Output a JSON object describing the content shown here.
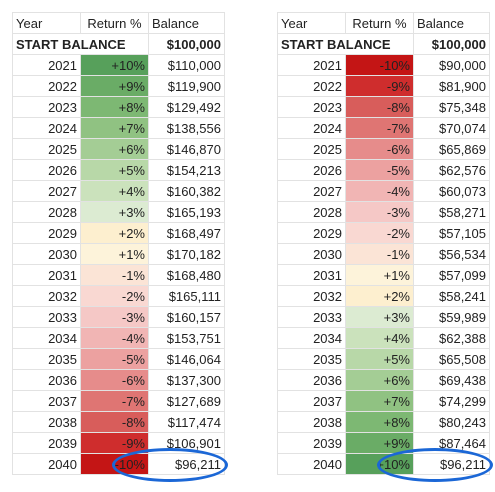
{
  "headers": {
    "year": "Year",
    "ret": "Return %",
    "bal": "Balance"
  },
  "start": {
    "label": "START BALANCE",
    "balance": "$100,000"
  },
  "left": {
    "rows": [
      {
        "year": "2021",
        "ret": "+10%",
        "bal": "$110,000",
        "color": "#57a05b"
      },
      {
        "year": "2022",
        "ret": "+9%",
        "bal": "$119,900",
        "color": "#6aac66"
      },
      {
        "year": "2023",
        "ret": "+8%",
        "bal": "$129,492",
        "color": "#7db873"
      },
      {
        "year": "2024",
        "ret": "+7%",
        "bal": "$138,556",
        "color": "#90c282"
      },
      {
        "year": "2025",
        "ret": "+6%",
        "bal": "$146,870",
        "color": "#a4cd95"
      },
      {
        "year": "2026",
        "ret": "+5%",
        "bal": "$154,213",
        "color": "#b8d8a8"
      },
      {
        "year": "2027",
        "ret": "+4%",
        "bal": "$160,382",
        "color": "#cbe2bc"
      },
      {
        "year": "2028",
        "ret": "+3%",
        "bal": "$165,193",
        "color": "#dcebd2"
      },
      {
        "year": "2029",
        "ret": "+2%",
        "bal": "$168,497",
        "color": "#fdefcf"
      },
      {
        "year": "2030",
        "ret": "+1%",
        "bal": "$170,182",
        "color": "#fdf3da"
      },
      {
        "year": "2031",
        "ret": "-1%",
        "bal": "$168,480",
        "color": "#fbe4d6"
      },
      {
        "year": "2032",
        "ret": "-2%",
        "bal": "$165,111",
        "color": "#f9d8d2"
      },
      {
        "year": "2033",
        "ret": "-3%",
        "bal": "$160,157",
        "color": "#f5c8c6"
      },
      {
        "year": "2034",
        "ret": "-4%",
        "bal": "$153,751",
        "color": "#f1b5b4"
      },
      {
        "year": "2035",
        "ret": "-5%",
        "bal": "$146,064",
        "color": "#eca1a0"
      },
      {
        "year": "2036",
        "ret": "-6%",
        "bal": "$137,300",
        "color": "#e68c8b"
      },
      {
        "year": "2037",
        "ret": "-7%",
        "bal": "$127,689",
        "color": "#df7573"
      },
      {
        "year": "2038",
        "ret": "-8%",
        "bal": "$117,474",
        "color": "#d85d5b"
      },
      {
        "year": "2039",
        "ret": "-9%",
        "bal": "$106,901",
        "color": "#cf2d2d"
      },
      {
        "year": "2040",
        "ret": "-10%",
        "bal": "$96,211",
        "color": "#c41515"
      }
    ]
  },
  "right": {
    "rows": [
      {
        "year": "2021",
        "ret": "-10%",
        "bal": "$90,000",
        "color": "#c41515"
      },
      {
        "year": "2022",
        "ret": "-9%",
        "bal": "$81,900",
        "color": "#cf2d2d"
      },
      {
        "year": "2023",
        "ret": "-8%",
        "bal": "$75,348",
        "color": "#d85d5b"
      },
      {
        "year": "2024",
        "ret": "-7%",
        "bal": "$70,074",
        "color": "#df7573"
      },
      {
        "year": "2025",
        "ret": "-6%",
        "bal": "$65,869",
        "color": "#e68c8b"
      },
      {
        "year": "2026",
        "ret": "-5%",
        "bal": "$62,576",
        "color": "#eca1a0"
      },
      {
        "year": "2027",
        "ret": "-4%",
        "bal": "$60,073",
        "color": "#f1b5b4"
      },
      {
        "year": "2028",
        "ret": "-3%",
        "bal": "$58,271",
        "color": "#f5c8c6"
      },
      {
        "year": "2029",
        "ret": "-2%",
        "bal": "$57,105",
        "color": "#f9d8d2"
      },
      {
        "year": "2030",
        "ret": "-1%",
        "bal": "$56,534",
        "color": "#fbe4d6"
      },
      {
        "year": "2031",
        "ret": "+1%",
        "bal": "$57,099",
        "color": "#fdf3da"
      },
      {
        "year": "2032",
        "ret": "+2%",
        "bal": "$58,241",
        "color": "#fdefcf"
      },
      {
        "year": "2033",
        "ret": "+3%",
        "bal": "$59,989",
        "color": "#dcebd2"
      },
      {
        "year": "2034",
        "ret": "+4%",
        "bal": "$62,388",
        "color": "#cbe2bc"
      },
      {
        "year": "2035",
        "ret": "+5%",
        "bal": "$65,508",
        "color": "#b8d8a8"
      },
      {
        "year": "2036",
        "ret": "+6%",
        "bal": "$69,438",
        "color": "#a4cd95"
      },
      {
        "year": "2037",
        "ret": "+7%",
        "bal": "$74,299",
        "color": "#90c282"
      },
      {
        "year": "2038",
        "ret": "+8%",
        "bal": "$80,243",
        "color": "#7db873"
      },
      {
        "year": "2039",
        "ret": "+9%",
        "bal": "$87,464",
        "color": "#6aac66"
      },
      {
        "year": "2040",
        "ret": "+10%",
        "bal": "$96,211",
        "color": "#57a05b"
      }
    ]
  },
  "highlight_color": "#1b67d6"
}
